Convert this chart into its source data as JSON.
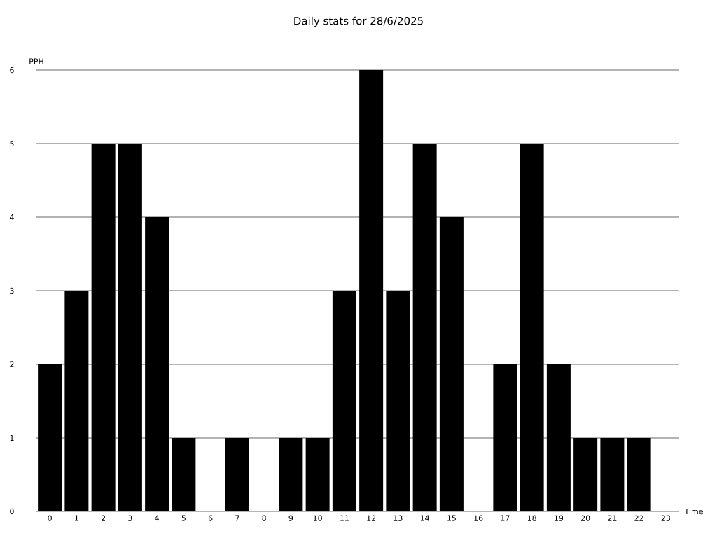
{
  "chart_data": {
    "type": "bar",
    "title": "Daily stats for 28/6/2025",
    "xlabel": "Time",
    "ylabel": "PPH",
    "categories": [
      "0",
      "1",
      "2",
      "3",
      "4",
      "5",
      "6",
      "7",
      "8",
      "9",
      "10",
      "11",
      "12",
      "13",
      "14",
      "15",
      "16",
      "17",
      "18",
      "19",
      "20",
      "21",
      "22",
      "23"
    ],
    "values": [
      2,
      3,
      5,
      5,
      4,
      1,
      0,
      1,
      0,
      1,
      1,
      3,
      6,
      3,
      5,
      4,
      0,
      2,
      5,
      2,
      1,
      1,
      1,
      0
    ],
    "color": "#000000",
    "ylim": [
      0,
      6
    ],
    "yticks": [
      0,
      1,
      2,
      3,
      4,
      5,
      6
    ],
    "grid": "y"
  }
}
